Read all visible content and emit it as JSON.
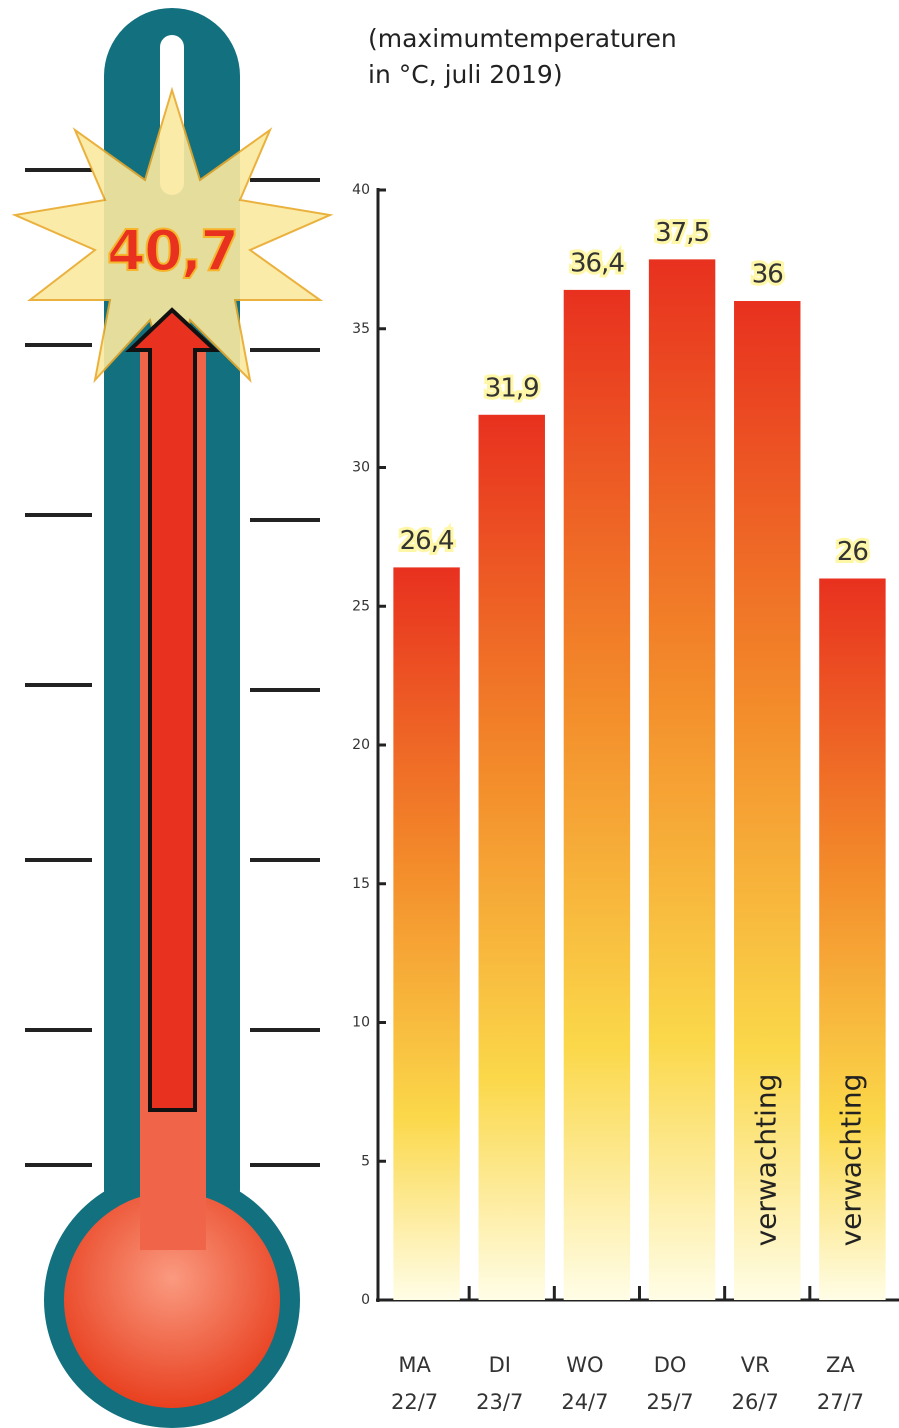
{
  "chart_data": {
    "type": "bar",
    "subtitle_lines": [
      "(maximumtemperaturen",
      "in °C, juli 2019)"
    ],
    "thermometer_label": "40,7",
    "categories": [
      "MA",
      "DI",
      "WO",
      "DO",
      "VR",
      "ZA"
    ],
    "category_dates": [
      "22/7",
      "23/7",
      "24/7",
      "25/7",
      "26/7",
      "27/7"
    ],
    "values": [
      26.4,
      31.9,
      36.4,
      37.5,
      36,
      26
    ],
    "value_labels": [
      "26,4",
      "31,9",
      "36,4",
      "37,5",
      "36",
      "26"
    ],
    "bar_notes": [
      null,
      null,
      null,
      null,
      "verwachting",
      "verwachting"
    ],
    "color": "#e8311f",
    "ylim": [
      0,
      40
    ],
    "yticks": [
      0,
      5,
      10,
      15,
      20,
      25,
      30,
      35,
      40
    ],
    "grid": false
  }
}
